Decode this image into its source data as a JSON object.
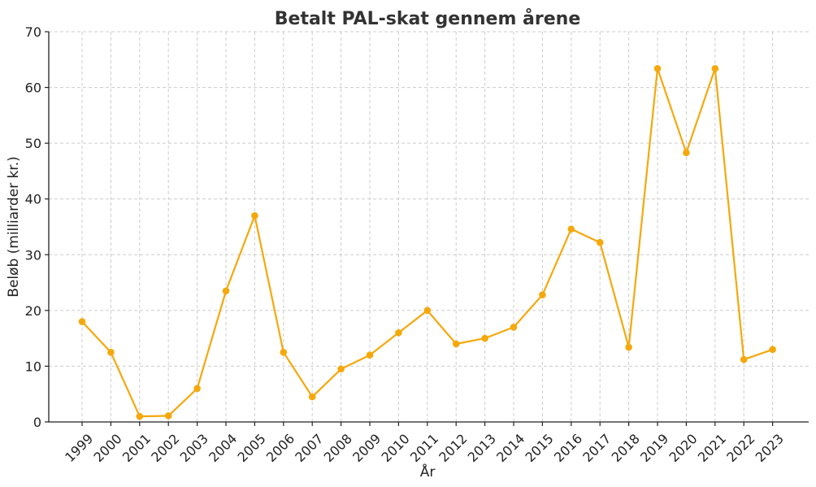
{
  "chart_data": {
    "type": "line",
    "title": "Betalt PAL-skat gennem årene",
    "xlabel": "År",
    "ylabel": "Beløb (milliarder kr.)",
    "categories": [
      "1999",
      "2000",
      "2001",
      "2002",
      "2003",
      "2004",
      "2005",
      "2006",
      "2007",
      "2008",
      "2009",
      "2010",
      "2011",
      "2012",
      "2013",
      "2014",
      "2015",
      "2016",
      "2017",
      "2018",
      "2019",
      "2020",
      "2021",
      "2022",
      "2023"
    ],
    "series": [
      {
        "values": [
          18,
          12.5,
          1,
          1.1,
          6,
          23.5,
          37,
          12.5,
          4.5,
          9.5,
          12,
          16,
          20,
          14,
          15,
          17,
          22.8,
          34.6,
          32.2,
          13.4,
          63.4,
          48.3,
          63.4,
          11.2,
          13
        ]
      }
    ],
    "ylim": [
      0,
      70
    ],
    "yticks": [
      0,
      10,
      20,
      30,
      40,
      50,
      60,
      70
    ],
    "grid": true,
    "color": "#f5a80c"
  }
}
